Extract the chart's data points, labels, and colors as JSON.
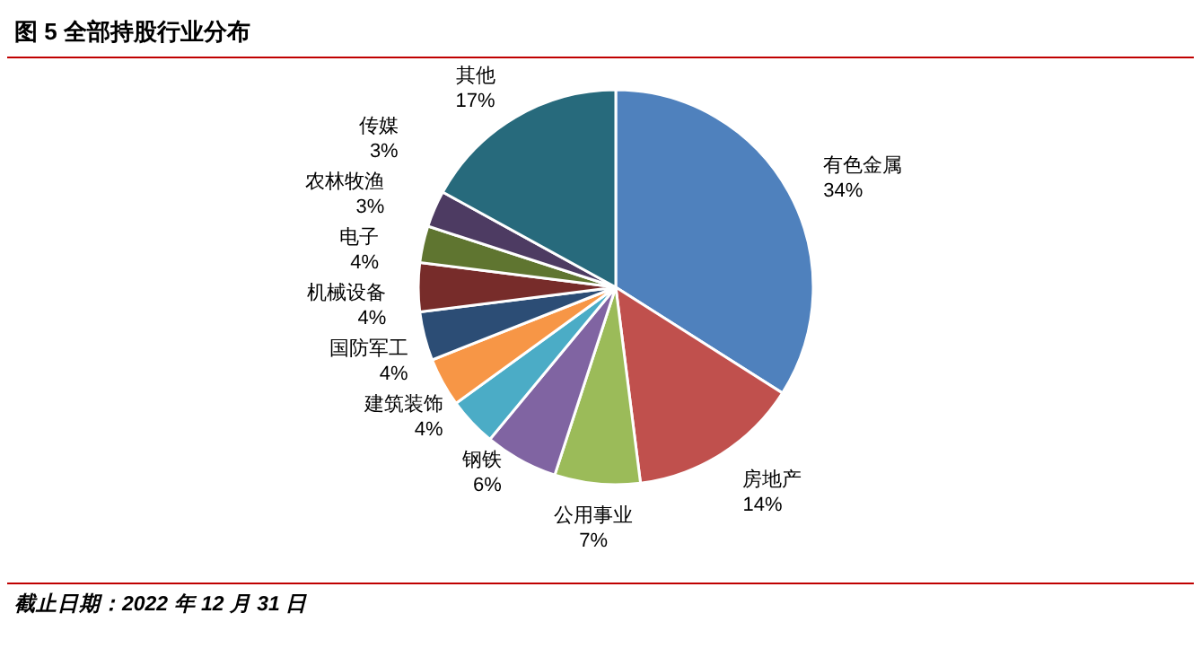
{
  "chart_data": {
    "type": "pie",
    "title": "图 5 全部持股行业分布",
    "categories": [
      "有色金属",
      "房地产",
      "公用事业",
      "钢铁",
      "建筑装饰",
      "国防军工",
      "机械设备",
      "电子",
      "农林牧渔",
      "传媒",
      "其他"
    ],
    "values": [
      34,
      14,
      7,
      6,
      4,
      4,
      4,
      4,
      3,
      3,
      17
    ],
    "colors": [
      "#4f81bd",
      "#c0504d",
      "#9bbb59",
      "#8064a2",
      "#4bacc6",
      "#f79646",
      "#2c4d75",
      "#772c2a",
      "#5f7530",
      "#4d3b62",
      "#276a7c"
    ],
    "value_labels": [
      "34%",
      "14%",
      "7%",
      "6%",
      "4%",
      "4%",
      "4%",
      "4%",
      "3%",
      "3%",
      "17%"
    ],
    "annotations": [
      "截止日期：2022 年 12 月 31 日"
    ]
  }
}
